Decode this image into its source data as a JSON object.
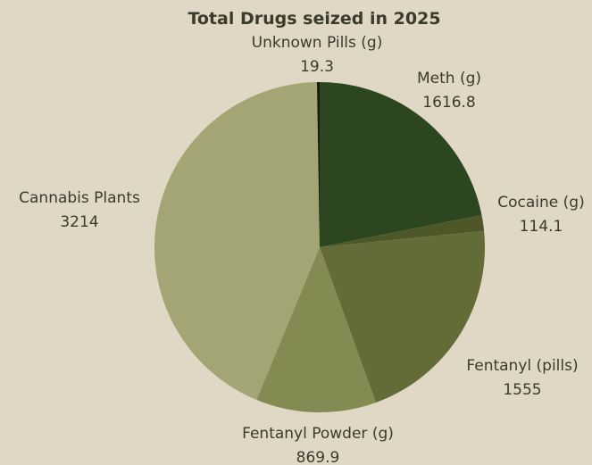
{
  "chart_data": {
    "type": "pie",
    "title": "Total Drugs seized in 2025",
    "start_angle_deg": -90,
    "direction": "clockwise",
    "slices": [
      {
        "label": "Meth (g)",
        "value": 1616.8,
        "display": "1616.8",
        "color": "#2c4620"
      },
      {
        "label": "Cocaine (g)",
        "value": 114.1,
        "display": "114.1",
        "color": "#4d5728"
      },
      {
        "label": "Fentanyl (pills)",
        "value": 1555,
        "display": "1555",
        "color": "#636b37"
      },
      {
        "label": "Fentanyl Powder (g)",
        "value": 869.9,
        "display": "869.9",
        "color": "#838b52"
      },
      {
        "label": "Cannabis Plants",
        "value": 3214,
        "display": "3214",
        "color": "#a3a674"
      },
      {
        "label": "Unknown Pills (g)",
        "value": 19.3,
        "display": "19.3",
        "color": "#1a1a10"
      }
    ]
  }
}
